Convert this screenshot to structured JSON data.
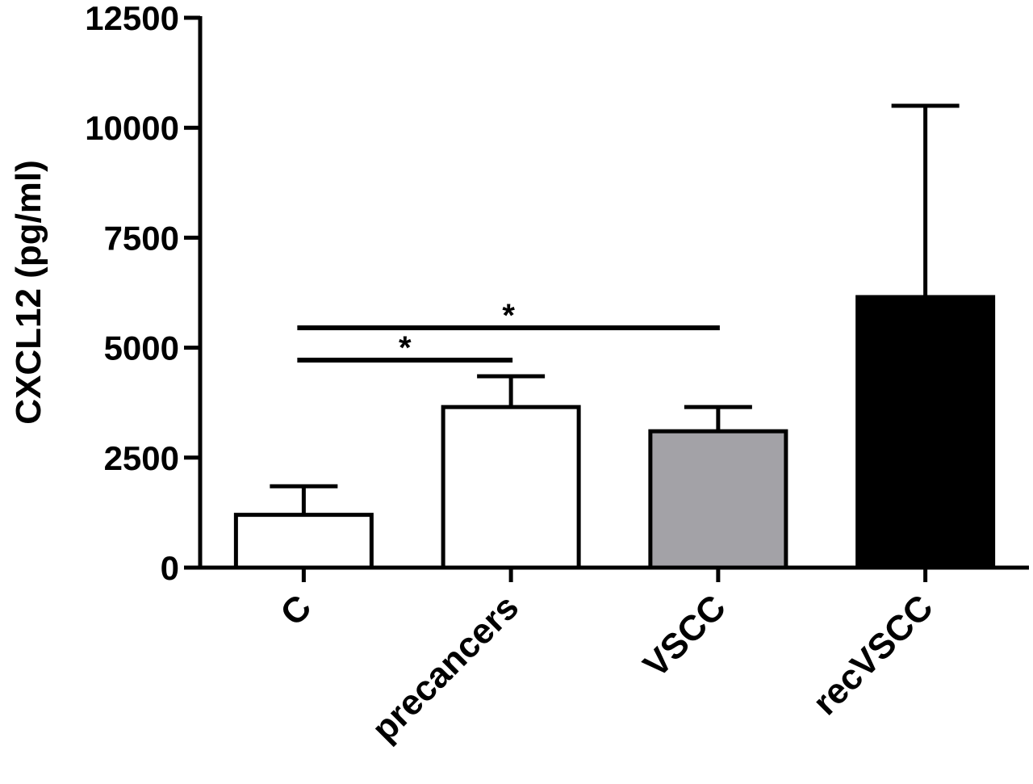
{
  "chart_data": {
    "type": "bar",
    "title": "",
    "xlabel": "",
    "ylabel": "CXCL12 (pg/ml)",
    "ylim": [
      0,
      12500
    ],
    "yticks": [
      0,
      2500,
      5000,
      7500,
      10000,
      12500
    ],
    "ytick_labels": [
      "0",
      "2500",
      "5000",
      "7500",
      "10000",
      "12500"
    ],
    "categories": [
      "C",
      "precancers",
      "VSCC",
      "recVSCC"
    ],
    "values": [
      1200,
      3650,
      3100,
      6150
    ],
    "errors": [
      650,
      700,
      550,
      4350
    ],
    "bar_colors": [
      "#ffffff",
      "#ffffff",
      "#a3a2a7",
      "#000000"
    ],
    "grid": false,
    "significance": [
      {
        "from": 0,
        "to": 1,
        "label": "*"
      },
      {
        "from": 0,
        "to": 2,
        "label": "*"
      }
    ]
  }
}
